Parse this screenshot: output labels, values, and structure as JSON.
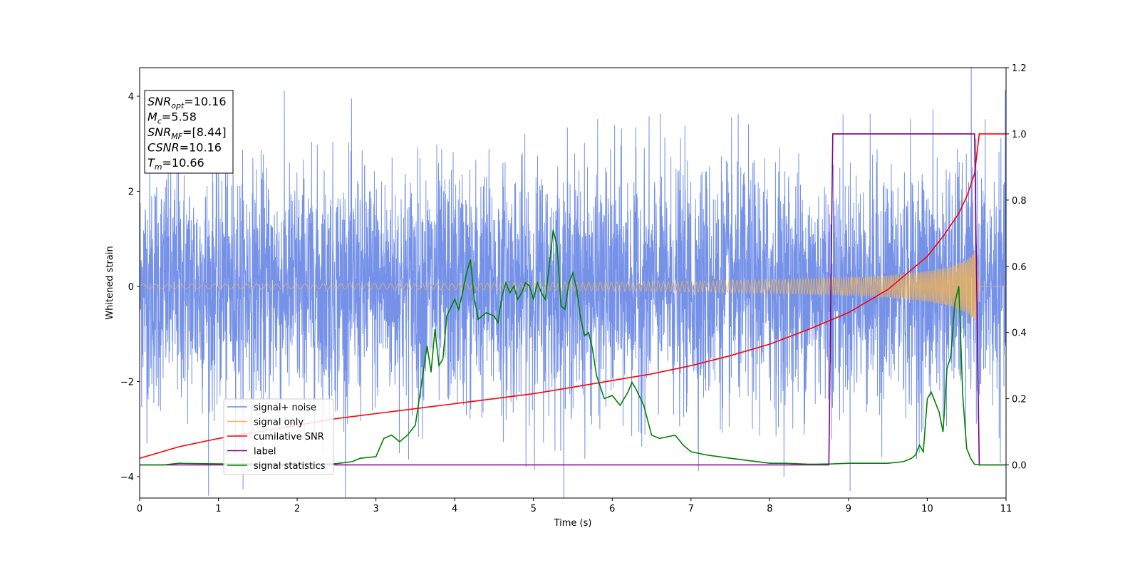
{
  "chart_data": {
    "type": "line",
    "xlabel": "Time (s)",
    "ylabel": "Whitened strain",
    "xlim": [
      0,
      11
    ],
    "ylim": [
      -4.45,
      4.6
    ],
    "ylim_right": [
      -0.1,
      1.2
    ],
    "x_ticks": [
      0,
      1,
      2,
      3,
      4,
      5,
      6,
      7,
      8,
      9,
      10,
      11
    ],
    "y_ticks": [
      -4,
      -2,
      0,
      2,
      4
    ],
    "y_ticks_right": [
      0.0,
      0.2,
      0.4,
      0.6,
      0.8,
      1.0,
      1.2
    ],
    "grid": false,
    "legend_position": "lower-left",
    "stats_box": [
      {
        "sym": "SNR",
        "sub": "opt",
        "value": "=10.16"
      },
      {
        "sym": "M",
        "sub": "c",
        "value": "=5.58"
      },
      {
        "sym": "SNR",
        "sub": "MF",
        "value": "=[8.44]"
      },
      {
        "sym": "CSNR",
        "sub": "",
        "value": "=10.16"
      },
      {
        "sym": "T",
        "sub": "m",
        "value": "=10.66"
      }
    ],
    "series": [
      {
        "name": "signal+ noise",
        "axis": "left",
        "color": "#6a89e6",
        "kind": "noise",
        "noise_std": 1.25
      },
      {
        "name": "signal only",
        "axis": "left",
        "color": "#f5b451",
        "kind": "chirp",
        "t_merger": 10.66,
        "amp_start": 0.05,
        "amp_end": 0.8,
        "envelope_points": [
          [
            0,
            0.05
          ],
          [
            2,
            0.055
          ],
          [
            4,
            0.07
          ],
          [
            6,
            0.09
          ],
          [
            8,
            0.14
          ],
          [
            9,
            0.19
          ],
          [
            9.5,
            0.23
          ],
          [
            10,
            0.32
          ],
          [
            10.3,
            0.42
          ],
          [
            10.5,
            0.56
          ],
          [
            10.62,
            0.76
          ],
          [
            10.66,
            0.0
          ]
        ]
      },
      {
        "name": "cumilative SNR",
        "axis": "right",
        "color": "#ff0000",
        "x": [
          0,
          0.5,
          1,
          1.5,
          2,
          2.5,
          3,
          3.5,
          4,
          4.5,
          5,
          5.5,
          6,
          6.5,
          7,
          7.5,
          8,
          8.5,
          9,
          9.5,
          10,
          10.2,
          10.4,
          10.5,
          10.6,
          10.66,
          11
        ],
        "y": [
          0.02,
          0.055,
          0.08,
          0.1,
          0.12,
          0.14,
          0.155,
          0.17,
          0.185,
          0.2,
          0.215,
          0.235,
          0.255,
          0.275,
          0.3,
          0.33,
          0.365,
          0.41,
          0.46,
          0.53,
          0.63,
          0.69,
          0.76,
          0.81,
          0.88,
          1.0,
          1.0
        ]
      },
      {
        "name": "label",
        "axis": "right",
        "color": "#800080",
        "x": [
          0,
          8.75,
          8.8,
          10.6,
          10.66,
          11
        ],
        "y": [
          0,
          0,
          1,
          1,
          0,
          0
        ]
      },
      {
        "name": "signal statistics",
        "axis": "right",
        "color": "#008000",
        "x": [
          0,
          0.3,
          0.5,
          1.0,
          1.5,
          2.0,
          2.3,
          2.5,
          2.7,
          2.8,
          3.0,
          3.1,
          3.2,
          3.3,
          3.4,
          3.5,
          3.6,
          3.65,
          3.7,
          3.75,
          3.8,
          3.85,
          3.9,
          4.0,
          4.05,
          4.1,
          4.15,
          4.2,
          4.25,
          4.3,
          4.4,
          4.5,
          4.55,
          4.6,
          4.65,
          4.7,
          4.75,
          4.8,
          4.85,
          4.9,
          4.95,
          5.0,
          5.05,
          5.1,
          5.15,
          5.2,
          5.25,
          5.3,
          5.35,
          5.4,
          5.45,
          5.5,
          5.55,
          5.6,
          5.65,
          5.7,
          5.75,
          5.8,
          5.9,
          6.0,
          6.1,
          6.2,
          6.25,
          6.3,
          6.4,
          6.5,
          6.6,
          6.7,
          6.8,
          6.9,
          7.0,
          7.2,
          7.5,
          8.0,
          8.2,
          8.5,
          8.8,
          9.0,
          9.2,
          9.5,
          9.7,
          9.8,
          9.85,
          9.9,
          9.95,
          10.0,
          10.05,
          10.1,
          10.15,
          10.2,
          10.25,
          10.3,
          10.35,
          10.4,
          10.45,
          10.5,
          10.55,
          10.6,
          10.65,
          10.7,
          11.0
        ],
        "y": [
          0,
          0,
          0.005,
          0.003,
          0.003,
          0.002,
          0.002,
          0.004,
          0.01,
          0.02,
          0.025,
          0.08,
          0.09,
          0.07,
          0.09,
          0.12,
          0.28,
          0.36,
          0.28,
          0.41,
          0.3,
          0.32,
          0.45,
          0.5,
          0.47,
          0.52,
          0.58,
          0.62,
          0.5,
          0.44,
          0.46,
          0.45,
          0.43,
          0.51,
          0.55,
          0.52,
          0.54,
          0.5,
          0.52,
          0.55,
          0.54,
          0.5,
          0.55,
          0.52,
          0.5,
          0.6,
          0.71,
          0.66,
          0.48,
          0.47,
          0.55,
          0.58,
          0.53,
          0.44,
          0.39,
          0.4,
          0.35,
          0.27,
          0.2,
          0.21,
          0.18,
          0.22,
          0.25,
          0.23,
          0.18,
          0.09,
          0.08,
          0.085,
          0.09,
          0.06,
          0.04,
          0.03,
          0.02,
          0.005,
          0.005,
          0.002,
          0.003,
          0.005,
          0.005,
          0.005,
          0.01,
          0.02,
          0.03,
          0.06,
          0.04,
          0.2,
          0.22,
          0.19,
          0.16,
          0.1,
          0.29,
          0.33,
          0.49,
          0.54,
          0.21,
          0.05,
          0.02,
          0.002,
          0.0,
          0.0,
          0.0
        ]
      }
    ]
  }
}
